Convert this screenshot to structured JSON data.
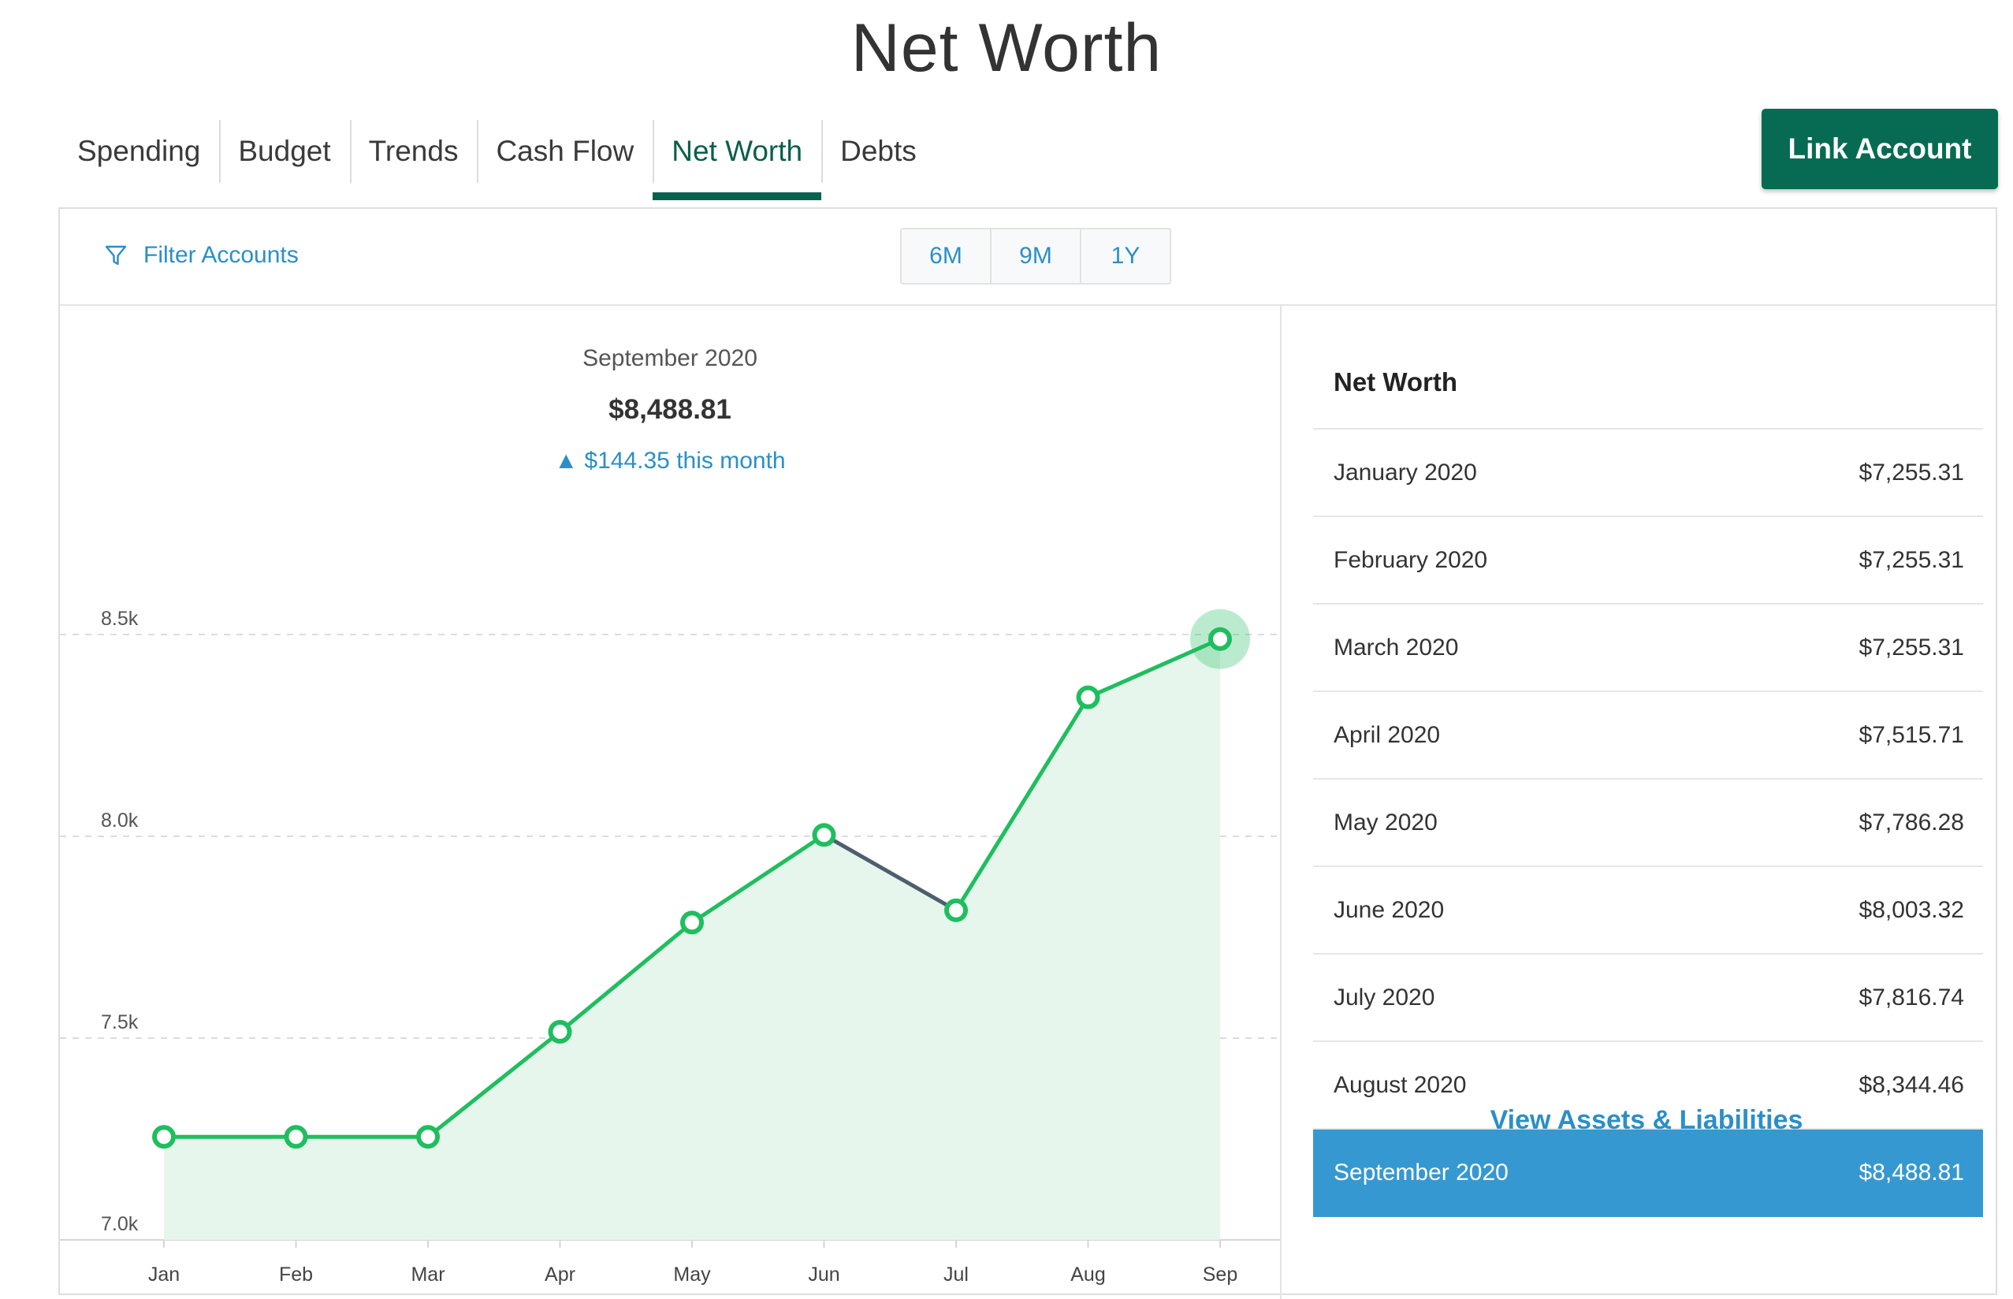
{
  "page": {
    "title": "Net Worth"
  },
  "tabs": [
    {
      "label": "Spending",
      "active": false
    },
    {
      "label": "Budget",
      "active": false
    },
    {
      "label": "Trends",
      "active": false
    },
    {
      "label": "Cash Flow",
      "active": false
    },
    {
      "label": "Net Worth",
      "active": true
    },
    {
      "label": "Debts",
      "active": false
    }
  ],
  "link_account": {
    "label": "Link Account",
    "color": "#066b52"
  },
  "filter": {
    "label": "Filter Accounts",
    "icon": "funnel-icon"
  },
  "ranges": [
    "6M",
    "9M",
    "1Y"
  ],
  "selected": {
    "month": "September 2020",
    "value": "$8,488.81",
    "change": "$144.35 this month",
    "change_icon": "triangle-up-icon"
  },
  "chart_data": {
    "type": "area",
    "categories": [
      "Jan",
      "Feb",
      "Mar",
      "Apr",
      "May",
      "Jun",
      "Jul",
      "Aug",
      "Sep"
    ],
    "values": [
      7255.31,
      7255.31,
      7255.31,
      7515.71,
      7786.28,
      8003.32,
      7816.74,
      8344.46,
      8488.81
    ],
    "y_ticks": [
      {
        "value": 7000,
        "label": "7.0k"
      },
      {
        "value": 7500,
        "label": "7.5k"
      },
      {
        "value": 8000,
        "label": "8.0k"
      },
      {
        "value": 8500,
        "label": "8.5k"
      }
    ],
    "ylim": [
      7000,
      8500
    ],
    "grid": "horizontal-dashed",
    "line_color": "#1fbe5e",
    "decrease_color": "#4d5e6e",
    "fill_color": "#e6f6ec",
    "highlight_index": 8
  },
  "net_worth_table": {
    "title": "Net Worth",
    "rows": [
      {
        "month": "January 2020",
        "value": "$7,255.31",
        "selected": false
      },
      {
        "month": "February 2020",
        "value": "$7,255.31",
        "selected": false
      },
      {
        "month": "March 2020",
        "value": "$7,255.31",
        "selected": false
      },
      {
        "month": "April 2020",
        "value": "$7,515.71",
        "selected": false
      },
      {
        "month": "May 2020",
        "value": "$7,786.28",
        "selected": false
      },
      {
        "month": "June 2020",
        "value": "$8,003.32",
        "selected": false
      },
      {
        "month": "July 2020",
        "value": "$7,816.74",
        "selected": false
      },
      {
        "month": "August 2020",
        "value": "$8,344.46",
        "selected": false
      },
      {
        "month": "September 2020",
        "value": "$8,488.81",
        "selected": true
      }
    ],
    "selected_color": "#3698d0"
  },
  "view_link": {
    "label": "View Assets & Liabilities"
  }
}
